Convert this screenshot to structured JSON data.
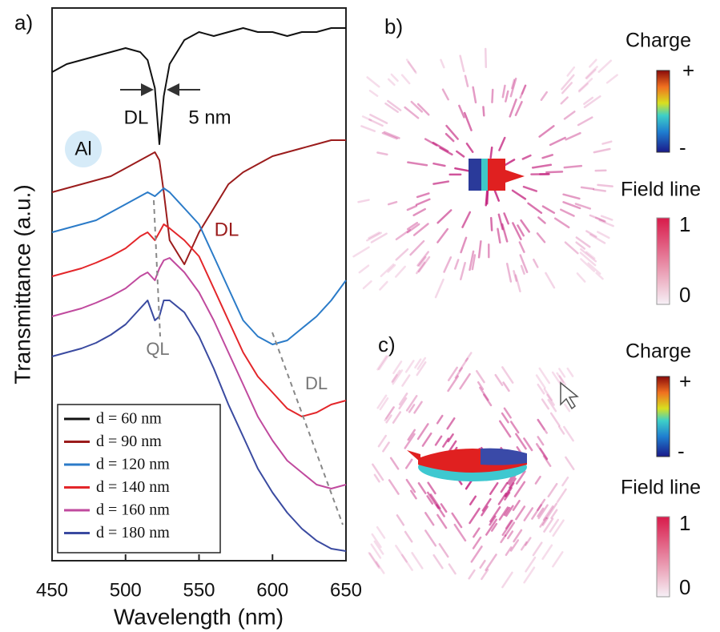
{
  "chart_data": {
    "type": "line",
    "panel_label": "a)",
    "x_label": "Wavelength (nm)",
    "y_label": "Transmittance (a.u.)",
    "x": [
      450,
      460,
      470,
      480,
      490,
      500,
      510,
      515,
      520,
      523,
      526,
      530,
      540,
      550,
      560,
      570,
      580,
      590,
      600,
      610,
      620,
      630,
      640,
      650
    ],
    "xlim": [
      450,
      650
    ],
    "xticks": [
      450,
      500,
      550,
      600,
      650
    ],
    "ylim": [
      0,
      69
    ],
    "series": [
      {
        "name": "d = 60 nm",
        "color": "#111111",
        "values": [
          61,
          62,
          62.5,
          63,
          63.5,
          64,
          63.5,
          62.5,
          59,
          52,
          58,
          62,
          65,
          66,
          65.5,
          66,
          66.5,
          66,
          66,
          65.5,
          66,
          66,
          66.5,
          66.5
        ]
      },
      {
        "name": "d = 90 nm",
        "color": "#9b1c1c",
        "values": [
          46,
          46.5,
          47,
          47.5,
          48,
          49,
          50,
          50.5,
          51,
          50,
          46,
          40,
          37,
          41,
          44,
          47,
          48.5,
          49.5,
          50.5,
          51,
          51.5,
          52,
          52.5,
          52.5
        ]
      },
      {
        "name": "d = 120 nm",
        "color": "#2b7bc8",
        "values": [
          41,
          41.5,
          42,
          42.5,
          43.5,
          44.5,
          45.5,
          46,
          45.5,
          46,
          46.5,
          46,
          44,
          42,
          38,
          34,
          30,
          28,
          27,
          27.5,
          29,
          30.5,
          32.5,
          35
        ]
      },
      {
        "name": "d = 140 nm",
        "color": "#e3262a",
        "values": [
          35.5,
          36,
          36.5,
          37.2,
          38,
          39,
          40.5,
          41,
          40,
          41,
          42,
          41.5,
          40,
          38,
          34,
          30,
          26,
          23,
          21,
          19,
          18,
          18.5,
          19.5,
          20
        ]
      },
      {
        "name": "d = 160 nm",
        "color": "#c04a9e",
        "values": [
          30.5,
          31,
          31.5,
          32.2,
          33,
          34,
          35.5,
          36,
          35,
          36.5,
          37.5,
          37.8,
          36,
          33.5,
          30,
          26,
          22,
          18,
          15,
          12.5,
          11,
          9.5,
          9,
          9.5
        ]
      },
      {
        "name": "d = 180 nm",
        "color": "#3a4aa0",
        "values": [
          25.5,
          26,
          26.5,
          27.2,
          28.2,
          29.5,
          31.5,
          32.5,
          30,
          30.5,
          32.5,
          32.5,
          31,
          28,
          24,
          19.5,
          15.5,
          11.5,
          8.5,
          6,
          4,
          2.5,
          1.5,
          1.2
        ]
      }
    ],
    "annotations": [
      {
        "text": "DL"
      },
      {
        "text": "5 nm"
      },
      {
        "text": "Al"
      },
      {
        "text": "DL"
      },
      {
        "text": "QL"
      },
      {
        "text": "DL"
      }
    ]
  },
  "panels": [
    {
      "label": "b)",
      "charge_title": "Charge",
      "charge_max": "+",
      "charge_min": "-",
      "field_title": "Field line",
      "field_max": 1,
      "field_min": 0
    },
    {
      "label": "c)",
      "charge_title": "Charge",
      "charge_max": "+",
      "charge_min": "-",
      "field_title": "Field line",
      "field_max": 1,
      "field_min": 0
    }
  ]
}
